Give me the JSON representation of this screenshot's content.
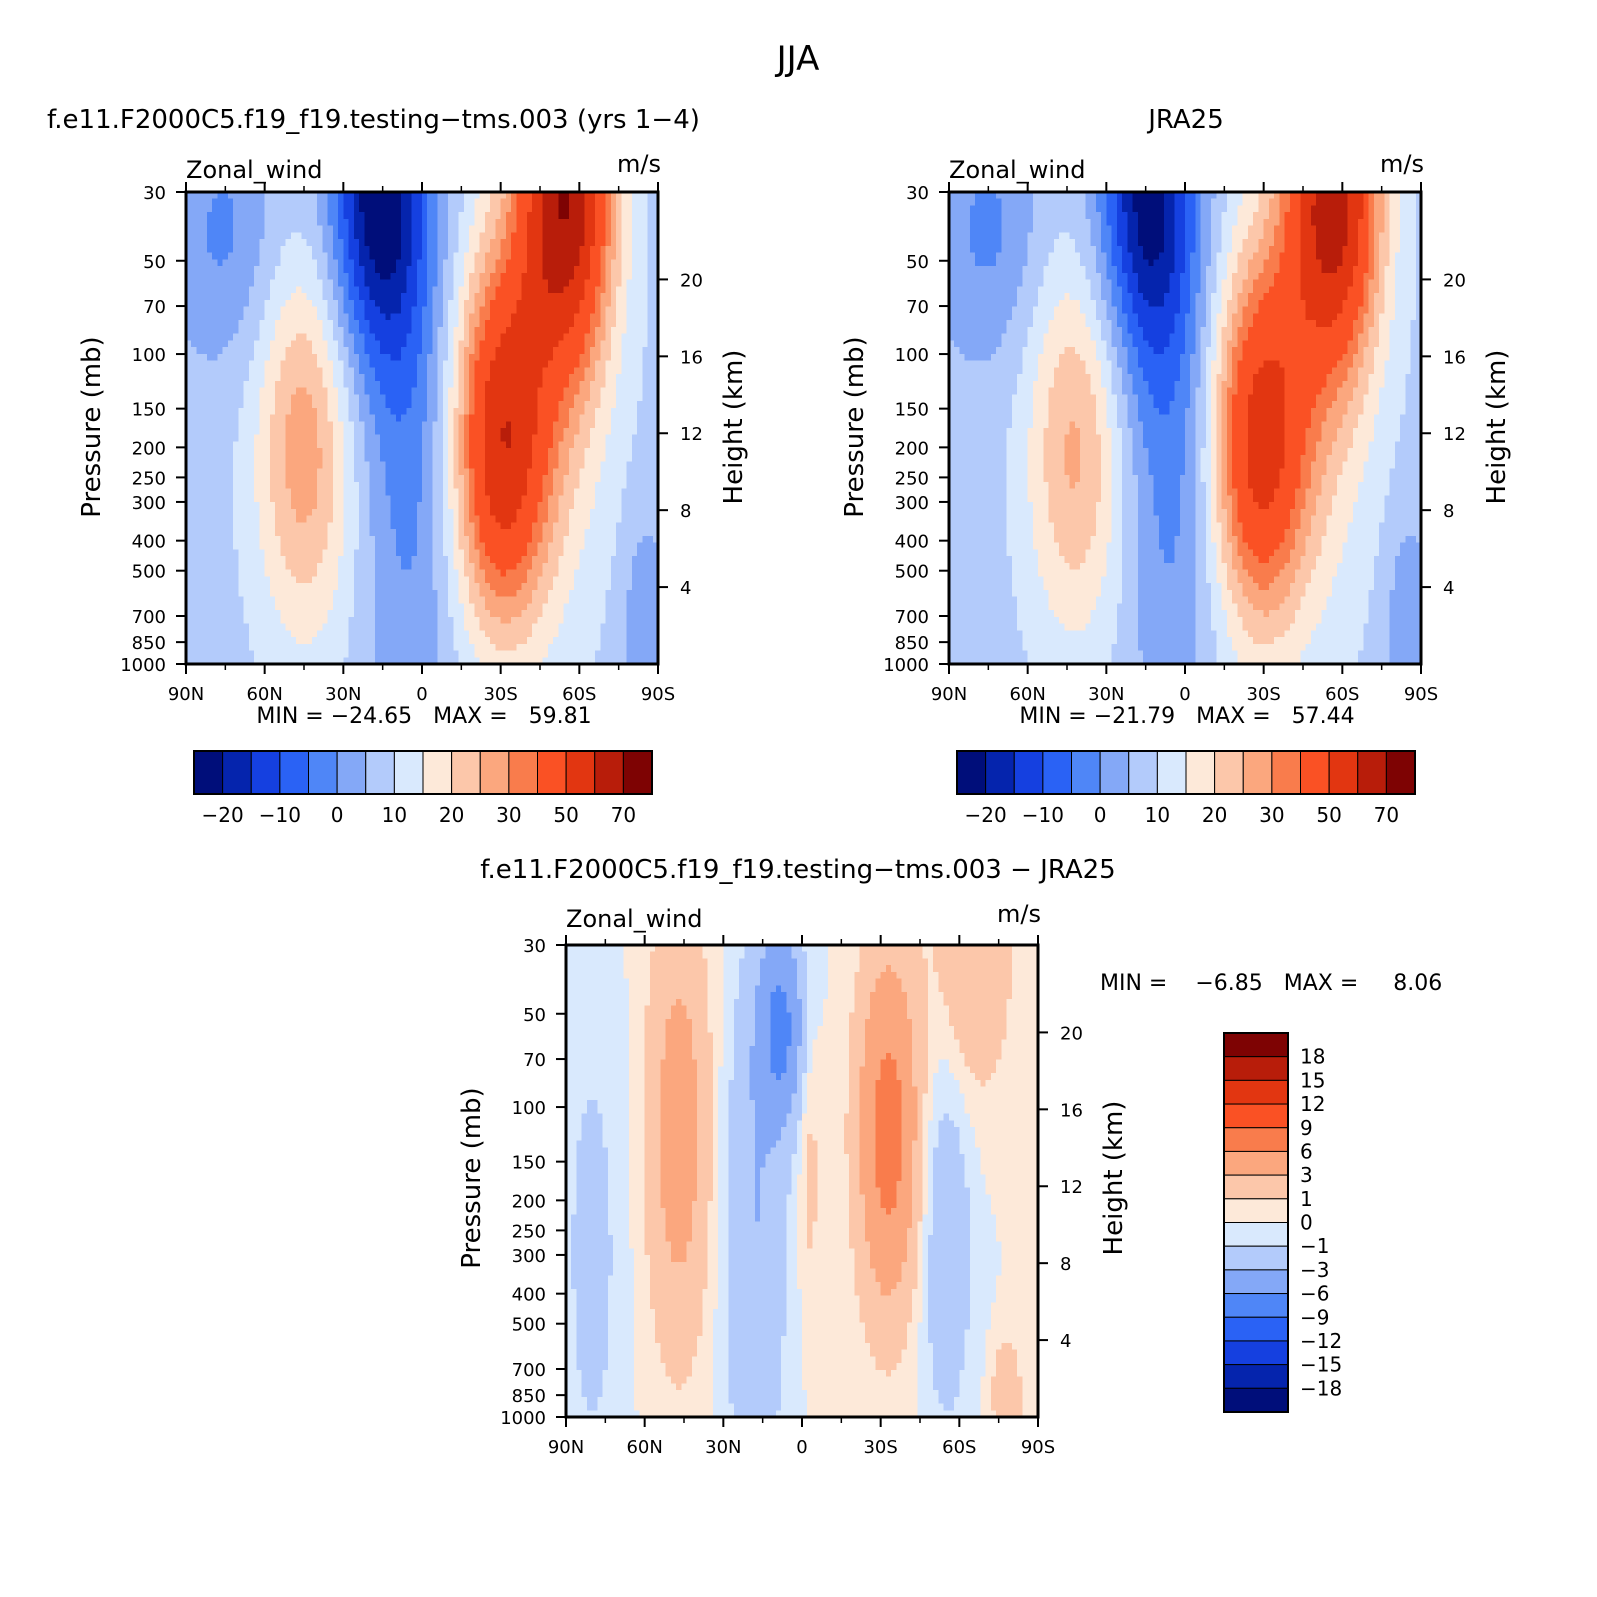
{
  "figure_title": "JJA",
  "palettes": {
    "absolute": [
      "#000e7a",
      "#0524ad",
      "#1540e0",
      "#2a62f5",
      "#4f86f7",
      "#84a8f7",
      "#b3cbfb",
      "#d9e9fd",
      "#fde9d9",
      "#fcc7aa",
      "#fba77e",
      "#f97c4c",
      "#fa5124",
      "#e23611",
      "#b81d0a",
      "#7e0303"
    ],
    "difference": [
      "#000e7a",
      "#0524ad",
      "#1540e0",
      "#2a62f5",
      "#4f86f7",
      "#84a8f7",
      "#b3cbfb",
      "#d9e9fd",
      "#fde9d9",
      "#fcc7aa",
      "#fba77e",
      "#f97c4c",
      "#fa5124",
      "#e23611",
      "#b81d0a",
      "#7e0303"
    ]
  },
  "chart_data": [
    {
      "type": "heatmap",
      "id": "model",
      "title": "f.e11.F2000C5.f19_f19.testing−tms.003 (yrs 1−4)",
      "left_label": "Zonal_wind",
      "units": "m/s",
      "ylabel": "Pressure (mb)",
      "y2label": "Height (km)",
      "xticks": [
        "90N",
        "60N",
        "30N",
        "0",
        "30S",
        "60S",
        "90S"
      ],
      "yticks": [
        "30",
        "50",
        "70",
        "100",
        "150",
        "200",
        "250",
        "300",
        "400",
        "500",
        "700",
        "850",
        "1000"
      ],
      "y2ticks": [
        "20",
        "16",
        "12",
        "8",
        "4"
      ],
      "stats_text": "MIN = −24.65   MAX =   59.81",
      "min": -24.65,
      "max": 59.81,
      "colorbar_labels": [
        "−20",
        "−10",
        "0",
        "10",
        "20",
        "30",
        "50",
        "70"
      ],
      "features": {
        "subtropical_jet": {
          "lat": -30,
          "p": 200,
          "peak": 45
        },
        "polar_jet": {
          "lat": -55,
          "p": 30,
          "peak": 59.81
        },
        "easterly_core": {
          "lat": 17,
          "p": 30,
          "peak": -24.65
        },
        "nh_westerly": {
          "lat": 45,
          "p": 200,
          "peak": 22
        }
      }
    },
    {
      "type": "heatmap",
      "id": "obs",
      "title": "JRA25",
      "left_label": "Zonal_wind",
      "units": "m/s",
      "ylabel": "Pressure (mb)",
      "y2label": "Height (km)",
      "xticks": [
        "90N",
        "60N",
        "30N",
        "0",
        "30S",
        "60S",
        "90S"
      ],
      "yticks": [
        "30",
        "50",
        "70",
        "100",
        "150",
        "200",
        "250",
        "300",
        "400",
        "500",
        "700",
        "850",
        "1000"
      ],
      "y2ticks": [
        "20",
        "16",
        "12",
        "8",
        "4"
      ],
      "stats_text": "MIN = −21.79   MAX =   57.44",
      "min": -21.79,
      "max": 57.44,
      "colorbar_labels": [
        "−20",
        "−10",
        "0",
        "10",
        "20",
        "30",
        "50",
        "70"
      ],
      "features": {
        "subtropical_jet": {
          "lat": -28,
          "p": 200,
          "peak": 42
        },
        "polar_jet": {
          "lat": -57,
          "p": 30,
          "peak": 57.44
        },
        "easterly_core": {
          "lat": 15,
          "p": 30,
          "peak": -21.79
        },
        "nh_westerly": {
          "lat": 42,
          "p": 200,
          "peak": 20
        }
      }
    },
    {
      "type": "heatmap",
      "id": "diff",
      "title": "f.e11.F2000C5.f19_f19.testing−tms.003 − JRA25",
      "left_label": "Zonal_wind",
      "units": "m/s",
      "ylabel": "Pressure (mb)",
      "y2label": "Height (km)",
      "xticks": [
        "90N",
        "60N",
        "30N",
        "0",
        "30S",
        "60S",
        "90S"
      ],
      "yticks": [
        "30",
        "50",
        "70",
        "100",
        "150",
        "200",
        "250",
        "300",
        "400",
        "500",
        "700",
        "850",
        "1000"
      ],
      "y2ticks": [
        "20",
        "16",
        "12",
        "8",
        "4"
      ],
      "stats_text": "MIN =    −6.85   MAX =     8.06",
      "min": -6.85,
      "max": 8.06,
      "colorbar_labels": [
        "18",
        "15",
        "12",
        "9",
        "6",
        "3",
        "1",
        "0",
        "−1",
        "−3",
        "−6",
        "−9",
        "−12",
        "−15",
        "−18"
      ]
    }
  ]
}
